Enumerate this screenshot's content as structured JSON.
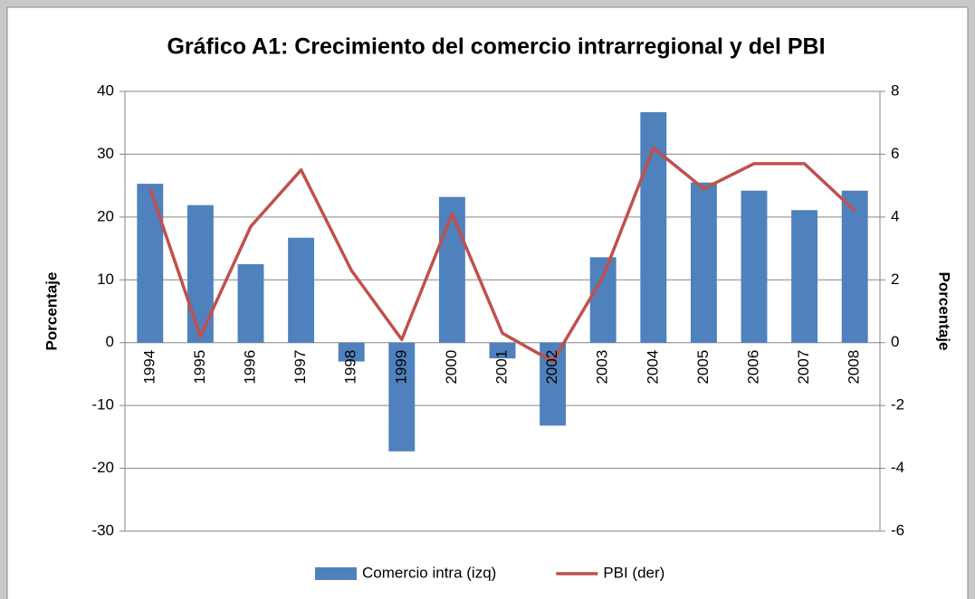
{
  "chart_data": {
    "type": "bar_line",
    "title": "Gráfico A1: Crecimiento del comercio intrarregional y del PBI",
    "y_label": "Porcentaje",
    "y2_label": "Porcentaje",
    "categories": [
      "1994",
      "1995",
      "1996",
      "1997",
      "1998",
      "1999",
      "2000",
      "2001",
      "2002",
      "2003",
      "2004",
      "2005",
      "2006",
      "2007",
      "2008"
    ],
    "series": [
      {
        "name": "Comercio intra (izq)",
        "type": "bar",
        "color": "#4f81bd",
        "axis": "y",
        "values": [
          25.3,
          21.9,
          12.5,
          16.7,
          -3.0,
          -17.3,
          23.2,
          -2.5,
          -13.2,
          13.6,
          36.7,
          25.5,
          24.2,
          21.1,
          24.2
        ]
      },
      {
        "name": "PBI (der)",
        "type": "line",
        "color": "#c0504d",
        "axis": "y2",
        "values": [
          4.9,
          0.2,
          3.7,
          5.5,
          2.3,
          0.1,
          4.1,
          0.3,
          -0.6,
          2.1,
          6.2,
          4.9,
          5.7,
          5.7,
          4.2
        ]
      }
    ],
    "ylim": [
      -30,
      40
    ],
    "yticks": [
      -30,
      -20,
      -10,
      0,
      10,
      20,
      30,
      40
    ],
    "y2lim": [
      -6,
      8
    ],
    "y2ticks": [
      -6,
      -4,
      -2,
      0,
      2,
      4,
      6,
      8
    ],
    "grid": true,
    "legend": "bottom"
  }
}
